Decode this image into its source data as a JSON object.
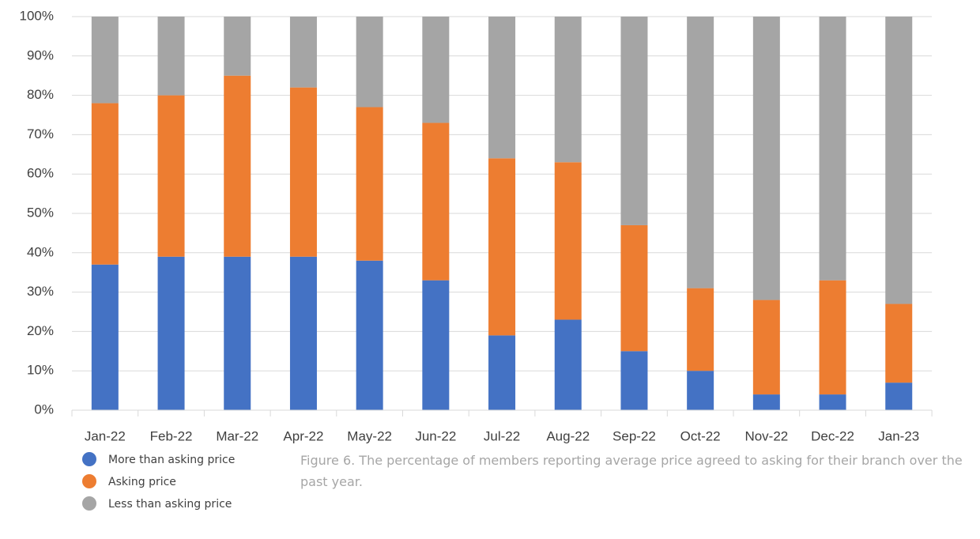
{
  "chart_data": {
    "type": "stacked_bar",
    "categories": [
      "Jan-22",
      "Feb-22",
      "Mar-22",
      "Apr-22",
      "May-22",
      "Jun-22",
      "Jul-22",
      "Aug-22",
      "Sep-22",
      "Oct-22",
      "Nov-22",
      "Dec-22",
      "Jan-23"
    ],
    "series": [
      {
        "name": "More than asking price",
        "color": "#4472c4",
        "values": [
          37,
          39,
          39,
          39,
          38,
          33,
          19,
          23,
          15,
          10,
          4,
          4,
          7
        ]
      },
      {
        "name": "Asking price",
        "color": "#ed7d31",
        "values": [
          41,
          41,
          46,
          43,
          39,
          40,
          45,
          40,
          32,
          21,
          24,
          29,
          20
        ]
      },
      {
        "name": "Less than asking price",
        "color": "#a5a5a5",
        "values": [
          22,
          20,
          15,
          18,
          23,
          27,
          36,
          37,
          53,
          69,
          72,
          67,
          73
        ]
      }
    ],
    "ylim": [
      0,
      100
    ],
    "yticks": [
      {
        "value": 0,
        "label": "0%"
      },
      {
        "value": 10,
        "label": "10%"
      },
      {
        "value": 20,
        "label": "20%"
      },
      {
        "value": 30,
        "label": "30%"
      },
      {
        "value": 40,
        "label": "40%"
      },
      {
        "value": 50,
        "label": "50%"
      },
      {
        "value": 60,
        "label": "60%"
      },
      {
        "value": 70,
        "label": "70%"
      },
      {
        "value": 80,
        "label": "80%"
      },
      {
        "value": 90,
        "label": "90%"
      },
      {
        "value": 100,
        "label": "100%"
      }
    ],
    "grid": true,
    "caption": "Figure 6. The percentage of members reporting average price agreed to asking for their branch over the past year."
  }
}
